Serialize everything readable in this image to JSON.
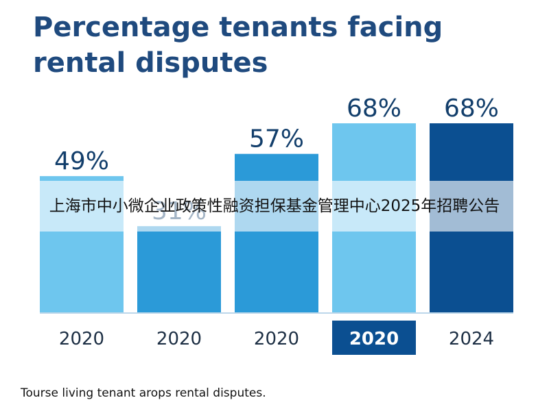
{
  "title": "Percentage tenants facing rental disputes",
  "overlay_text": "上海市中小微企业政策性融资担保基金管理中心2025年招聘公告",
  "caption": "Tourse living tenant arops rental disputes.",
  "colors": {
    "title": "#1f4a7e",
    "bar_light": "#6ec6ee",
    "bar_mid": "#2b9ad8",
    "bar_dark": "#0b4f91",
    "label": "#123e6b",
    "highlight_box": "#0b4f91"
  },
  "chart_data": {
    "type": "bar",
    "title": "Percentage tenants facing rental disputes",
    "categories": [
      "2020",
      "2020",
      "2020",
      "2020",
      "2024"
    ],
    "values": [
      49,
      31,
      57,
      68,
      68
    ],
    "value_labels": [
      "49%",
      "31%",
      "57%",
      "68%",
      "68%"
    ],
    "highlighted_category_index": 3,
    "bar_colors": [
      "#6ec6ee",
      "#2b9ad8",
      "#2b9ad8",
      "#6ec6ee",
      "#0b4f91"
    ],
    "xlabel": "",
    "ylabel": "",
    "grid": false,
    "legend": "none"
  }
}
